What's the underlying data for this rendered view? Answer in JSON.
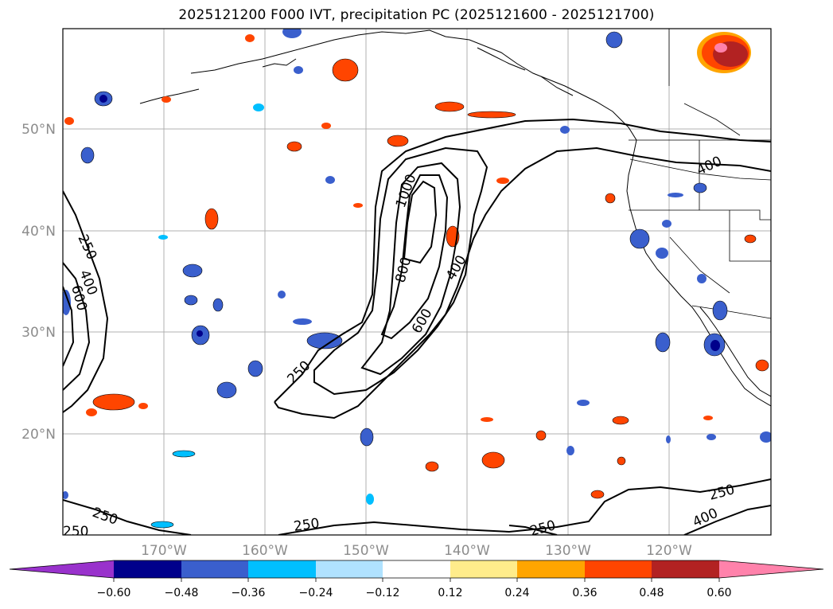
{
  "title": "2025121200 F000 IVT, precipitation PC (2025121600 - 2025121700)",
  "lat_labels": [
    "50°N",
    "40°N",
    "30°N",
    "20°N"
  ],
  "lon_labels": [
    "170°W",
    "160°W",
    "150°W",
    "140°W",
    "130°W",
    "120°W"
  ],
  "contour_labels": [
    "250",
    "400",
    "600",
    "250",
    "250",
    "250",
    "250",
    "1000",
    "800",
    "600",
    "400",
    "250",
    "250",
    "400",
    "400"
  ],
  "colorbar": {
    "colors": [
      "#9932cc",
      "#00008b",
      "#3a5fcd",
      "#00bfff",
      "#b0e2ff",
      "#ffffff",
      "#ffec8b",
      "#ffa500",
      "#ff4500",
      "#b22222",
      "#ff82ab"
    ],
    "tick_labels": [
      "−0.60",
      "−0.48",
      "−0.36",
      "−0.24",
      "−0.12",
      "0.12",
      "0.24",
      "0.36",
      "0.48",
      "0.60"
    ]
  }
}
